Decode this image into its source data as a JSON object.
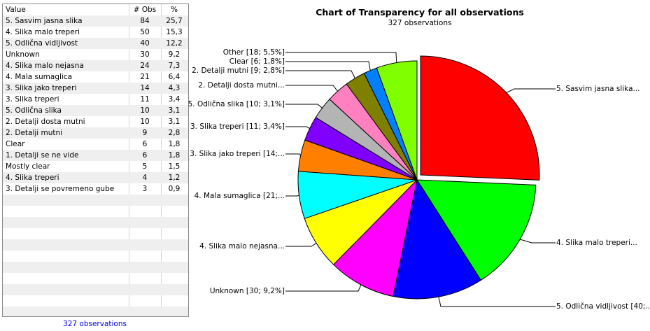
{
  "table": {
    "headers": {
      "value": "Value",
      "obs": "# Obs",
      "pct": "%"
    },
    "rows": [
      {
        "value": "5. Sasvim jasna slika",
        "obs": "84",
        "pct": "25,7"
      },
      {
        "value": "4. Slika malo treperi",
        "obs": "50",
        "pct": "15,3"
      },
      {
        "value": "5. Odlična vidljivost",
        "obs": "40",
        "pct": "12,2"
      },
      {
        "value": "Unknown",
        "obs": "30",
        "pct": "9,2"
      },
      {
        "value": "4. Slika malo nejasna",
        "obs": "24",
        "pct": "7,3"
      },
      {
        "value": "4. Mala sumaglica",
        "obs": "21",
        "pct": "6,4"
      },
      {
        "value": "3. Slika jako treperi",
        "obs": "14",
        "pct": "4,3"
      },
      {
        "value": "3. Slika treperi",
        "obs": "11",
        "pct": "3,4"
      },
      {
        "value": "5. Odlična slika",
        "obs": "10",
        "pct": "3,1"
      },
      {
        "value": "2. Detalji dosta mutni",
        "obs": "10",
        "pct": "3,1"
      },
      {
        "value": "2. Detalji mutni",
        "obs": "9",
        "pct": "2,8"
      },
      {
        "value": "Clear",
        "obs": "6",
        "pct": "1,8"
      },
      {
        "value": "1. Detalji se ne vide",
        "obs": "6",
        "pct": "1,8"
      },
      {
        "value": "Mostly clear",
        "obs": "5",
        "pct": "1,5"
      },
      {
        "value": "4. Slika treperi",
        "obs": "4",
        "pct": "1,2"
      },
      {
        "value": "3. Detalji se povremeno gube",
        "obs": "3",
        "pct": "0,9"
      }
    ],
    "footer": "327 observations"
  },
  "chart_data": {
    "type": "pie",
    "title": "Chart of Transparency for all observations",
    "subtitle": "327 observations",
    "total": 327,
    "exploded": "5. Sasvim jasna slika",
    "slices": [
      {
        "name": "5. Sasvim jasna slika",
        "value": 84,
        "pct": 25.7,
        "color": "#ff0000",
        "label": "5. Sasvim jasna slika..."
      },
      {
        "name": "4. Slika malo treperi",
        "value": 50,
        "pct": 15.3,
        "color": "#00ff00",
        "label": "4. Slika malo treperi..."
      },
      {
        "name": "5. Odlična vidljivost",
        "value": 40,
        "pct": 12.2,
        "color": "#0000ff",
        "label": "5. Odlična vidljivost [40;..."
      },
      {
        "name": "Unknown",
        "value": 30,
        "pct": 9.2,
        "color": "#ff00ff",
        "label": "Unknown [30; 9,2%]"
      },
      {
        "name": "4. Slika malo nejasna",
        "value": 24,
        "pct": 7.3,
        "color": "#ffff00",
        "label": "4. Slika malo nejasna..."
      },
      {
        "name": "4. Mala sumaglica",
        "value": 21,
        "pct": 6.4,
        "color": "#00ffff",
        "label": "4. Mala sumaglica [21;..."
      },
      {
        "name": "3. Slika jako treperi",
        "value": 14,
        "pct": 4.3,
        "color": "#ff8000",
        "label": "3. Slika jako treperi [14;..."
      },
      {
        "name": "3. Slika treperi",
        "value": 11,
        "pct": 3.4,
        "color": "#8000ff",
        "label": "3. Slika treperi [11; 3,4%]"
      },
      {
        "name": "5. Odlična slika",
        "value": 10,
        "pct": 3.1,
        "color": "#b4b4b4",
        "label": "5. Odlična slika [10; 3,1%]"
      },
      {
        "name": "2. Detalji dosta mutni",
        "value": 10,
        "pct": 3.1,
        "color": "#ff80c0",
        "label": "2. Detalji dosta mutni..."
      },
      {
        "name": "2. Detalji mutni",
        "value": 9,
        "pct": 2.8,
        "color": "#808000",
        "label": "2. Detalji mutni [9; 2,8%]"
      },
      {
        "name": "Clear",
        "value": 6,
        "pct": 1.8,
        "color": "#0080ff",
        "label": "Clear [6; 1,8%]"
      },
      {
        "name": "Other",
        "value": 18,
        "pct": 5.5,
        "color": "#80ff00",
        "label": "Other [18; 5,5%]"
      }
    ]
  }
}
